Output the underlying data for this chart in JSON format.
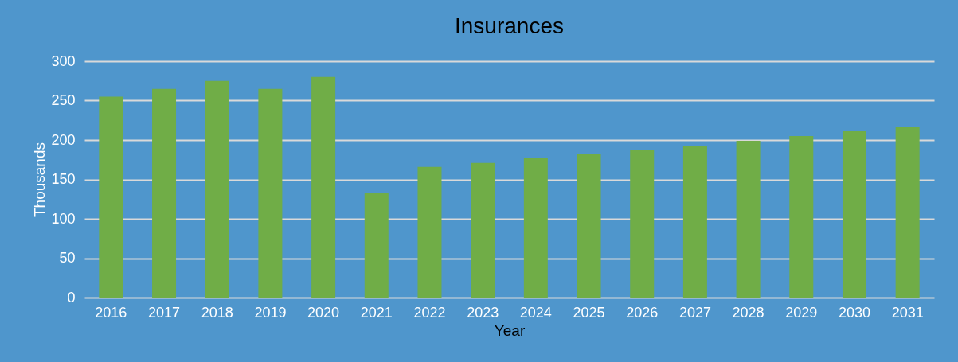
{
  "chart_data": {
    "type": "bar",
    "title": "Insurances",
    "xlabel": "Year",
    "ylabel": "Thousands",
    "categories": [
      "2016",
      "2017",
      "2018",
      "2019",
      "2020",
      "2021",
      "2022",
      "2023",
      "2024",
      "2025",
      "2026",
      "2027",
      "2028",
      "2029",
      "2030",
      "2031"
    ],
    "values": [
      255,
      265,
      275,
      265,
      280,
      133,
      166,
      171,
      177,
      182,
      187,
      193,
      199,
      205,
      211,
      217
    ],
    "color": "#70ad47",
    "ylim": [
      0,
      300
    ],
    "yticks": [
      0,
      50,
      100,
      150,
      200,
      250,
      300
    ],
    "grid": "y"
  }
}
